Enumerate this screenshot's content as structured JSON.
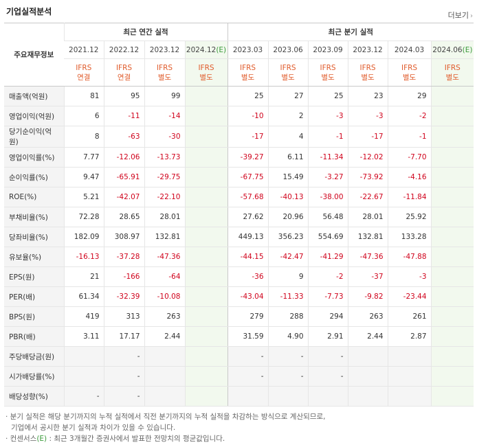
{
  "page_title": "기업실적분석",
  "more_label": "더보기",
  "more_icon": "chevron-right-icon",
  "label_header": "주요재무정보",
  "annual_header": "최근 연간 실적",
  "quarter_header": "최근 분기 실적",
  "periods": [
    {
      "date": "2021.12",
      "std1": "IFRS",
      "std2": "연결"
    },
    {
      "date": "2022.12",
      "std1": "IFRS",
      "std2": "연결"
    },
    {
      "date": "2023.12",
      "std1": "IFRS",
      "std2": "별도"
    },
    {
      "date": "2024.12",
      "est": "(E)",
      "std1": "IFRS",
      "std2": "별도"
    },
    {
      "date": "2023.03",
      "std1": "IFRS",
      "std2": "별도"
    },
    {
      "date": "2023.06",
      "std1": "IFRS",
      "std2": "별도"
    },
    {
      "date": "2023.09",
      "std1": "IFRS",
      "std2": "별도"
    },
    {
      "date": "2023.12",
      "std1": "IFRS",
      "std2": "별도"
    },
    {
      "date": "2024.03",
      "std1": "IFRS",
      "std2": "별도"
    },
    {
      "date": "2024.06",
      "est": "(E)",
      "std1": "IFRS",
      "std2": "별도"
    }
  ],
  "rows": [
    {
      "label": "매출액(억원)",
      "values": [
        "81",
        "95",
        "99",
        "",
        "25",
        "27",
        "25",
        "23",
        "29",
        ""
      ]
    },
    {
      "label": "영업이익(억원)",
      "values": [
        "6",
        "-11",
        "-14",
        "",
        "-10",
        "2",
        "-3",
        "-3",
        "-2",
        ""
      ]
    },
    {
      "label": "당기순이익(억원)",
      "values": [
        "8",
        "-63",
        "-30",
        "",
        "-17",
        "4",
        "-1",
        "-17",
        "-1",
        ""
      ]
    },
    {
      "label": "영업이익률(%)",
      "values": [
        "7.77",
        "-12.06",
        "-13.73",
        "",
        "-39.27",
        "6.11",
        "-11.34",
        "-12.02",
        "-7.70",
        ""
      ]
    },
    {
      "label": "순이익률(%)",
      "values": [
        "9.47",
        "-65.91",
        "-29.75",
        "",
        "-67.75",
        "15.49",
        "-3.27",
        "-73.92",
        "-4.16",
        ""
      ]
    },
    {
      "label": "ROE(%)",
      "values": [
        "5.21",
        "-42.07",
        "-22.10",
        "",
        "-57.68",
        "-40.13",
        "-38.00",
        "-22.67",
        "-11.84",
        ""
      ]
    },
    {
      "label": "부채비율(%)",
      "values": [
        "72.28",
        "28.65",
        "28.01",
        "",
        "27.62",
        "20.96",
        "56.48",
        "28.01",
        "25.92",
        ""
      ]
    },
    {
      "label": "당좌비율(%)",
      "values": [
        "182.09",
        "308.97",
        "132.81",
        "",
        "449.13",
        "356.23",
        "554.69",
        "132.81",
        "133.28",
        ""
      ]
    },
    {
      "label": "유보율(%)",
      "values": [
        "-16.13",
        "-37.28",
        "-47.36",
        "",
        "-44.15",
        "-42.47",
        "-41.29",
        "-47.36",
        "-47.88",
        ""
      ]
    },
    {
      "label": "EPS(원)",
      "values": [
        "21",
        "-166",
        "-64",
        "",
        "-36",
        "9",
        "-2",
        "-37",
        "-3",
        ""
      ]
    },
    {
      "label": "PER(배)",
      "values": [
        "61.34",
        "-32.39",
        "-10.08",
        "",
        "-43.04",
        "-11.33",
        "-7.73",
        "-9.82",
        "-23.44",
        ""
      ]
    },
    {
      "label": "BPS(원)",
      "values": [
        "419",
        "313",
        "263",
        "",
        "279",
        "288",
        "294",
        "263",
        "261",
        ""
      ]
    },
    {
      "label": "PBR(배)",
      "values": [
        "3.11",
        "17.17",
        "2.44",
        "",
        "31.59",
        "4.90",
        "2.91",
        "2.44",
        "2.87",
        ""
      ]
    },
    {
      "label": "주당배당금(원)",
      "values": [
        "",
        "-",
        "",
        "",
        "-",
        "-",
        "-",
        "",
        "",
        ""
      ]
    },
    {
      "label": "시가배당률(%)",
      "values": [
        "",
        "-",
        "",
        "",
        "-",
        "-",
        "-",
        "",
        "",
        ""
      ]
    },
    {
      "label": "배당성향(%)",
      "values": [
        "-",
        "-",
        "",
        "",
        "",
        "",
        "",
        "",
        "",
        ""
      ]
    }
  ],
  "notes": {
    "line1": "· 분기 실적은 해당 분기까지의 누적 실적에서 직전 분기까지의 누적 실적을 차감하는 방식으로 계산되므로,",
    "line2": "기업에서 공시한 분기 실적과 차이가 있을 수 있습니다.",
    "line3a": "· 컨센서스",
    "line3e": "(E)",
    "line3b": " : 최근 3개월간 증권사에서 발표한 전망치의 평균값입니다."
  }
}
